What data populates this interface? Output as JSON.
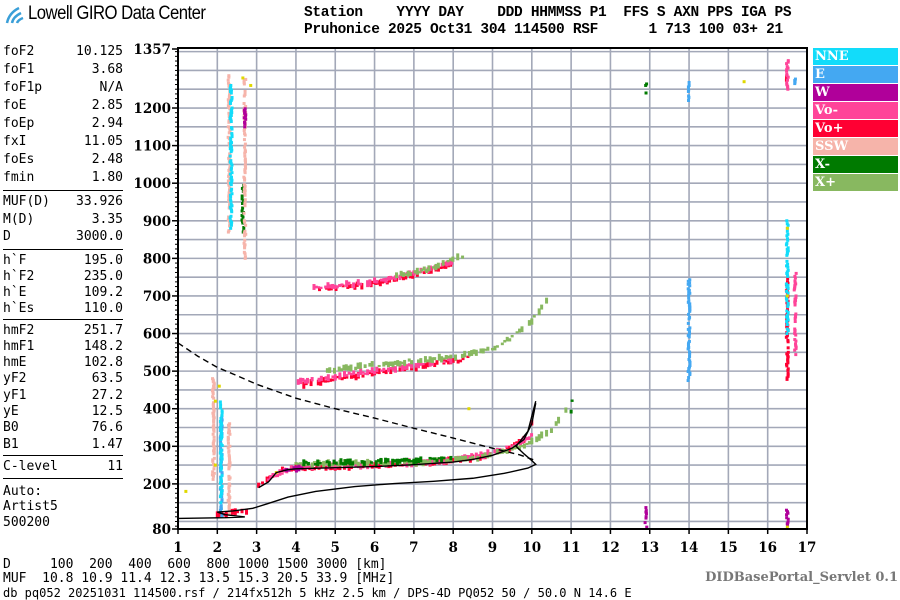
{
  "logo": {
    "text": "Lowell GIRO Data Center"
  },
  "header": {
    "line1": "Station    YYYY DAY    DDD HHMMSS P1  FFS S AXN PPS IGA PS",
    "line2": "Pruhonice 2025 Oct31 304 114500 RSF      1 713 100 03+ 21"
  },
  "params": {
    "group1": [
      {
        "label": "foF2",
        "value": "10.125"
      },
      {
        "label": "foF1",
        "value": "3.68"
      },
      {
        "label": "foF1p",
        "value": "N/A"
      },
      {
        "label": "foE",
        "value": "2.85"
      },
      {
        "label": "foEp",
        "value": "2.94"
      },
      {
        "label": "fxI",
        "value": "11.05"
      },
      {
        "label": "foEs",
        "value": "2.48"
      },
      {
        "label": "fmin",
        "value": "1.80"
      }
    ],
    "group2": [
      {
        "label": "MUF(D)",
        "value": "33.926"
      },
      {
        "label": "M(D)",
        "value": "3.35"
      },
      {
        "label": "D",
        "value": "3000.0"
      }
    ],
    "group3": [
      {
        "label": "h`F",
        "value": "195.0"
      },
      {
        "label": "h`F2",
        "value": "235.0"
      },
      {
        "label": "h`E",
        "value": "109.2"
      },
      {
        "label": "h`Es",
        "value": "110.0"
      }
    ],
    "group4": [
      {
        "label": "hmF2",
        "value": "251.7"
      },
      {
        "label": "hmF1",
        "value": "148.2"
      },
      {
        "label": "hmE",
        "value": "102.8"
      },
      {
        "label": "yF2",
        "value": "63.5"
      },
      {
        "label": "yF1",
        "value": "27.2"
      },
      {
        "label": "yE",
        "value": "12.5"
      },
      {
        "label": "B0",
        "value": "76.6"
      },
      {
        "label": "B1",
        "value": "1.47"
      }
    ],
    "clevel": {
      "label": "C-level",
      "value": "11"
    },
    "auto": [
      "Auto:",
      "Artist5",
      "500200"
    ]
  },
  "legend": [
    {
      "label": "NNE",
      "color": "#12dcfa"
    },
    {
      "label": "E",
      "color": "#44a8f2"
    },
    {
      "label": "W",
      "color": "#b0009a"
    },
    {
      "label": "Vo-",
      "color": "#ff4499"
    },
    {
      "label": "Vo+",
      "color": "#ff0033"
    },
    {
      "label": "SSW",
      "color": "#f6b4aa"
    },
    {
      "label": "X-",
      "color": "#007a00"
    },
    {
      "label": "X+",
      "color": "#88b860"
    }
  ],
  "bottom": {
    "d_row": "D     100  200  400  600  800 1000 1500 3000 [km]",
    "muf_row": "MUF  10.8 10.9 11.4 12.3 13.5 15.3 20.5 33.9 [MHz]",
    "db_line": "db pq052 20251031 114500.rsf / 214fx512h 5 kHz 2.5 km / DPS-4D PQ052 50 / 50.0 N 14.6 E",
    "servlet": "DIDBasePortal_Servlet 0.1"
  },
  "chart_data": {
    "type": "scatter",
    "title": "",
    "xlabel": "",
    "ylabel": "",
    "xlim": [
      1,
      17
    ],
    "ylim": [
      80,
      1357
    ],
    "x_ticks": [
      "1",
      "2",
      "3",
      "4",
      "5",
      "6",
      "7",
      "8",
      "9",
      "10",
      "11",
      "12",
      "13",
      "14",
      "15",
      "16",
      "17"
    ],
    "y_ticks": [
      "1357",
      "1200",
      "1100",
      "1000",
      "900",
      "800",
      "700",
      "600",
      "500",
      "400",
      "300",
      "200",
      "80"
    ],
    "grid": true,
    "legend_position": "right",
    "extra_colors": {
      "yellow": "#e0d800",
      "blue": "#2233dd"
    },
    "series": [
      {
        "name": "Vo+",
        "traces": [
          [
            [
              3.05,
              198
            ],
            [
              3.2,
              203
            ],
            [
              3.4,
              222
            ],
            [
              3.6,
              238
            ],
            [
              4,
              243
            ],
            [
              5,
              246
            ],
            [
              6,
              249
            ],
            [
              7,
              254
            ],
            [
              8,
              261
            ],
            [
              8.5,
              268
            ],
            [
              9,
              280
            ],
            [
              9.5,
              298
            ],
            [
              9.8,
              322
            ],
            [
              10.0,
              365
            ],
            [
              10.1,
              420
            ]
          ],
          [
            [
              2.0,
              118
            ],
            [
              2.4,
              122
            ],
            [
              2.8,
              130
            ]
          ],
          [
            [
              4.2,
              465
            ],
            [
              5,
              480
            ],
            [
              6,
              495
            ],
            [
              7,
              510
            ],
            [
              8,
              526
            ],
            [
              8.5,
              538
            ]
          ],
          [
            [
              4.6,
              718
            ],
            [
              5.5,
              727
            ],
            [
              6.5,
              742
            ],
            [
              7.5,
              768
            ],
            [
              8,
              788
            ]
          ],
          [
            [
              16.5,
              470
            ],
            [
              16.5,
              750
            ]
          ],
          [
            [
              16.5,
              1270
            ],
            [
              16.5,
              1290
            ]
          ]
        ]
      },
      {
        "name": "Vo-",
        "traces": [
          [
            [
              3.3,
              215
            ],
            [
              4,
              246
            ],
            [
              5,
              248
            ],
            [
              6,
              251
            ],
            [
              7,
              256
            ],
            [
              8,
              263
            ],
            [
              9,
              283
            ],
            [
              9.6,
              305
            ],
            [
              10.05,
              330
            ],
            [
              10.2,
              430
            ]
          ],
          [
            [
              4.0,
              472
            ],
            [
              5,
              486
            ],
            [
              6,
              500
            ],
            [
              7,
              515
            ],
            [
              8,
              532
            ]
          ],
          [
            [
              4.4,
              720
            ],
            [
              6,
              738
            ],
            [
              7,
              760
            ],
            [
              8.2,
              795
            ]
          ],
          [
            [
              16.7,
              540
            ],
            [
              16.7,
              760
            ]
          ],
          [
            [
              16.5,
              1250
            ],
            [
              16.5,
              1330
            ]
          ]
        ]
      },
      {
        "name": "X+",
        "traces": [
          [
            [
              4,
              252
            ],
            [
              5,
              254
            ],
            [
              6,
              255
            ],
            [
              7,
              258
            ],
            [
              8,
              263
            ],
            [
              8.5,
              268
            ],
            [
              9,
              278
            ],
            [
              9.5,
              292
            ],
            [
              10,
              312
            ],
            [
              10.5,
              345
            ],
            [
              10.8,
              385
            ],
            [
              11.0,
              415
            ]
          ],
          [
            [
              4.8,
              502
            ],
            [
              6,
              516
            ],
            [
              7,
              527
            ],
            [
              8,
              538
            ],
            [
              9,
              560
            ],
            [
              9.5,
              590
            ],
            [
              10,
              635
            ],
            [
              10.5,
              700
            ]
          ],
          [
            [
              6.5,
              752
            ],
            [
              7.5,
              775
            ],
            [
              8.3,
              810
            ]
          ]
        ]
      },
      {
        "name": "X-",
        "traces": [
          [
            [
              4.2,
              256
            ],
            [
              5.5,
              257
            ],
            [
              7,
              262
            ],
            [
              8,
              268
            ]
          ],
          [
            [
              11.0,
              395
            ],
            [
              11.05,
              440
            ]
          ],
          [
            [
              12.9,
              1240
            ],
            [
              12.9,
              1265
            ]
          ],
          [
            [
              2.65,
              870
            ],
            [
              2.65,
              1000
            ]
          ]
        ]
      },
      {
        "name": "SSW",
        "traces": [
          [
            [
              2.3,
              870
            ],
            [
              2.3,
              1290
            ]
          ],
          [
            [
              2.7,
              800
            ],
            [
              2.7,
              1280
            ]
          ],
          [
            [
              1.9,
              200
            ],
            [
              1.9,
              480
            ]
          ],
          [
            [
              2.3,
              120
            ],
            [
              2.3,
              360
            ]
          ]
        ]
      },
      {
        "name": "E",
        "traces": [
          [
            [
              14.0,
              475
            ],
            [
              14.0,
              750
            ]
          ],
          [
            [
              14.0,
              1220
            ],
            [
              14.0,
              1270
            ]
          ],
          [
            [
              2.1,
              110
            ],
            [
              2.1,
              400
            ]
          ],
          [
            [
              16.7,
              1265
            ],
            [
              16.7,
              1280
            ]
          ]
        ]
      },
      {
        "name": "NNE",
        "traces": [
          [
            [
              2.1,
              150
            ],
            [
              2.1,
              420
            ]
          ],
          [
            [
              2.35,
              880
            ],
            [
              2.35,
              1260
            ]
          ],
          [
            [
              16.5,
              600
            ],
            [
              16.5,
              900
            ]
          ]
        ]
      },
      {
        "name": "W",
        "traces": [
          [
            [
              3.7,
              235
            ],
            [
              4.2,
              243
            ]
          ],
          [
            [
              12.9,
              85
            ],
            [
              12.9,
              140
            ]
          ],
          [
            [
              16.5,
              90
            ],
            [
              16.5,
              130
            ]
          ],
          [
            [
              2.7,
              1150
            ],
            [
              2.7,
              1200
            ]
          ]
        ]
      }
    ],
    "yellow_points": [
      [
        1.95,
        250
      ],
      [
        1.95,
        420
      ],
      [
        2.65,
        1280
      ],
      [
        2.85,
        1260
      ],
      [
        3.5,
        230
      ],
      [
        8.4,
        400
      ],
      [
        15.4,
        1270
      ],
      [
        16.5,
        85
      ],
      [
        16.5,
        700
      ],
      [
        16.5,
        880
      ],
      [
        2.05,
        460
      ],
      [
        1.2,
        180
      ]
    ],
    "lines": [
      {
        "style": "solid",
        "points": [
          [
            1.0,
            108
          ],
          [
            2.2,
            110
          ],
          [
            2.7,
            112
          ],
          [
            2.2,
            118
          ],
          [
            2.0,
            125
          ],
          [
            2.4,
            128
          ],
          [
            2.9,
            135
          ],
          [
            3.3,
            148
          ],
          [
            3.8,
            165
          ],
          [
            4.5,
            180
          ],
          [
            5.5,
            193
          ],
          [
            6.5,
            201
          ],
          [
            7.5,
            207
          ],
          [
            8.5,
            215
          ],
          [
            9.3,
            228
          ],
          [
            9.9,
            242
          ],
          [
            10.1,
            252
          ],
          [
            10.0,
            262
          ],
          [
            9.8,
            280
          ],
          [
            9.6,
            300
          ],
          [
            9.9,
            340
          ],
          [
            10.1,
            420
          ]
        ]
      },
      {
        "style": "solid",
        "points": [
          [
            3.05,
            190
          ],
          [
            3.3,
            205
          ],
          [
            3.5,
            230
          ],
          [
            3.8,
            238
          ],
          [
            4,
            240
          ],
          [
            5,
            243
          ],
          [
            6,
            246
          ],
          [
            7,
            251
          ],
          [
            8,
            258
          ],
          [
            8.5,
            265
          ],
          [
            9,
            276
          ],
          [
            9.5,
            295
          ],
          [
            9.8,
            318
          ],
          [
            10.0,
            360
          ],
          [
            10.1,
            415
          ]
        ]
      },
      {
        "style": "dashed",
        "points": [
          [
            1.0,
            575
          ],
          [
            1.5,
            540
          ],
          [
            2.0,
            510
          ],
          [
            2.5,
            488
          ],
          [
            3.0,
            465
          ],
          [
            4.0,
            428
          ],
          [
            5.0,
            400
          ],
          [
            6.0,
            375
          ],
          [
            7.0,
            348
          ],
          [
            8.0,
            322
          ],
          [
            9.0,
            295
          ],
          [
            9.7,
            277
          ],
          [
            10.1,
            262
          ]
        ]
      }
    ]
  }
}
